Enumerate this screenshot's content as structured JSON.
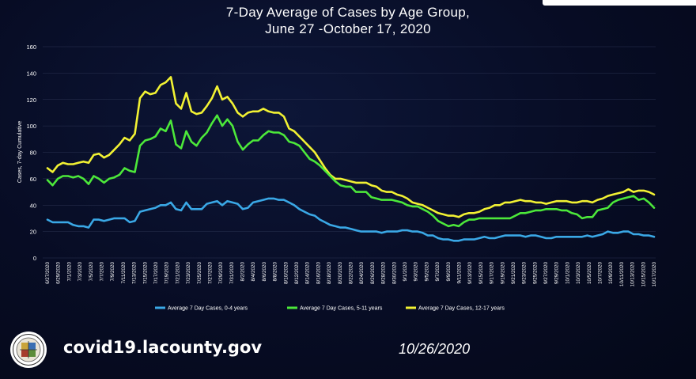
{
  "title_line1": "7-Day Average of Cases by Age Group,",
  "title_line2": "June 27 -October 17, 2020",
  "footer": {
    "url": "covid19.lacounty.gov",
    "date": "10/26/2020"
  },
  "colors": {
    "series_0_4": "#3aa8e6",
    "series_5_11": "#4ce83a",
    "series_12_17": "#f2f233",
    "grid": "#2b3352",
    "text": "#ffffff"
  },
  "chart_data": {
    "type": "line",
    "ylabel": "Cases, 7-day Cumulative",
    "ylim": [
      0,
      160
    ],
    "yticks": [
      0,
      20,
      40,
      60,
      80,
      100,
      120,
      140,
      160
    ],
    "legend_position": "bottom-center",
    "xtick_labels": [
      "6/27/2020",
      "6/29/2020",
      "7/1/2020",
      "7/3/2020",
      "7/5/2020",
      "7/7/2020",
      "7/9/2020",
      "7/11/2020",
      "7/13/2020",
      "7/15/2020",
      "7/17/2020",
      "7/19/2020",
      "7/21/2020",
      "7/23/2020",
      "7/25/2020",
      "7/27/2020",
      "7/29/2020",
      "7/31/2020",
      "8/2/2020",
      "8/4/2020",
      "8/6/2020",
      "8/8/2020",
      "8/10/2020",
      "8/12/2020",
      "8/14/2020",
      "8/16/2020",
      "8/18/2020",
      "8/20/2020",
      "8/22/2020",
      "8/24/2020",
      "8/26/2020",
      "8/28/2020",
      "8/30/2020",
      "9/1/2020",
      "9/3/2020",
      "9/5/2020",
      "9/7/2020",
      "9/9/2020",
      "9/11/2020",
      "9/13/2020",
      "9/15/2020",
      "9/17/2020",
      "9/19/2020",
      "9/21/2020",
      "9/23/2020",
      "9/25/2020",
      "9/27/2020",
      "9/29/2020",
      "10/1/2020",
      "10/3/2020",
      "10/5/2020",
      "10/7/2020",
      "10/9/2020",
      "10/11/2020",
      "10/13/2020",
      "10/15/2020",
      "10/17/2020"
    ],
    "series": [
      {
        "name": "Average 7 Day Cases, 0-4 years",
        "color": "#3aa8e6",
        "values": [
          29,
          27,
          27,
          27,
          27,
          25,
          24,
          24,
          23,
          29,
          29,
          28,
          29,
          30,
          30,
          30,
          27,
          28,
          35,
          36,
          37,
          38,
          40,
          40,
          42,
          37,
          36,
          42,
          37,
          37,
          37,
          41,
          42,
          43,
          40,
          43,
          42,
          41,
          37,
          38,
          42,
          43,
          44,
          45,
          45,
          44,
          44,
          42,
          40,
          37,
          35,
          33,
          32,
          29,
          27,
          25,
          24,
          23,
          23,
          22,
          21,
          20,
          20,
          20,
          20,
          19,
          20,
          20,
          20,
          21,
          21,
          20,
          20,
          19,
          17,
          17,
          15,
          14,
          14,
          13,
          13,
          14,
          14,
          14,
          15,
          16,
          15,
          15,
          16,
          17,
          17,
          17,
          17,
          16,
          17,
          17,
          16,
          15,
          15,
          16,
          16,
          16,
          16,
          16,
          16,
          17,
          16,
          17,
          18,
          20,
          19,
          19,
          20,
          20,
          18,
          18,
          17,
          17,
          16
        ]
      },
      {
        "name": "Average 7 Day Cases, 5-11 years",
        "color": "#4ce83a",
        "values": [
          59,
          55,
          60,
          62,
          62,
          61,
          62,
          60,
          56,
          62,
          60,
          57,
          60,
          61,
          63,
          68,
          66,
          65,
          85,
          89,
          90,
          92,
          98,
          96,
          104,
          86,
          83,
          96,
          88,
          85,
          91,
          95,
          102,
          108,
          100,
          105,
          100,
          88,
          82,
          86,
          89,
          89,
          93,
          96,
          95,
          95,
          93,
          88,
          87,
          85,
          80,
          75,
          73,
          70,
          66,
          62,
          58,
          55,
          54,
          54,
          50,
          50,
          50,
          46,
          45,
          44,
          44,
          44,
          43,
          42,
          40,
          39,
          39,
          37,
          35,
          32,
          28,
          26,
          24,
          25,
          24,
          27,
          29,
          29,
          30,
          30,
          30,
          30,
          30,
          30,
          30,
          32,
          34,
          34,
          35,
          36,
          36,
          37,
          37,
          37,
          36,
          36,
          34,
          33,
          30,
          31,
          31,
          36,
          37,
          38,
          42,
          44,
          45,
          46,
          47,
          44,
          45,
          42,
          38
        ]
      },
      {
        "name": "Average 7 Day Cases, 12-17 years",
        "color": "#f2f233",
        "values": [
          68,
          65,
          70,
          72,
          71,
          71,
          72,
          73,
          72,
          78,
          79,
          76,
          78,
          82,
          86,
          91,
          89,
          94,
          121,
          126,
          124,
          125,
          131,
          133,
          137,
          117,
          113,
          125,
          111,
          109,
          110,
          115,
          121,
          130,
          120,
          122,
          117,
          110,
          107,
          110,
          111,
          111,
          113,
          111,
          110,
          110,
          107,
          98,
          96,
          92,
          88,
          84,
          80,
          74,
          68,
          63,
          60,
          60,
          59,
          58,
          57,
          57,
          57,
          55,
          54,
          51,
          50,
          50,
          48,
          47,
          45,
          42,
          41,
          40,
          38,
          36,
          34,
          33,
          32,
          32,
          31,
          33,
          34,
          34,
          35,
          37,
          38,
          40,
          40,
          42,
          42,
          43,
          44,
          43,
          43,
          42,
          42,
          41,
          42,
          43,
          43,
          43,
          42,
          42,
          43,
          43,
          42,
          44,
          45,
          47,
          48,
          49,
          50,
          52,
          50,
          51,
          51,
          50,
          48
        ]
      }
    ]
  }
}
